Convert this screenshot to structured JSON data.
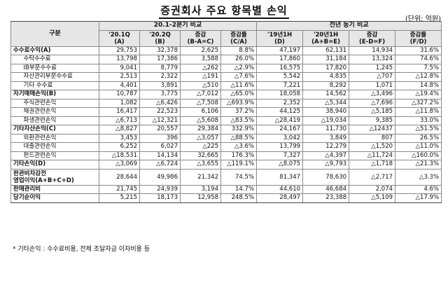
{
  "title": "증권회사 주요 항목별 손익",
  "unit": "(단위: 억원)",
  "header": {
    "category": "구분",
    "group1": "20.1-2분기 비교",
    "group2": "전년 동기 비교",
    "cols": [
      {
        "l1": "'20.1Q",
        "l2": "(A)"
      },
      {
        "l1": "'20.2Q",
        "l2": "(B)"
      },
      {
        "l1": "증감",
        "l2": "(B-A=C)"
      },
      {
        "l1": "증감률",
        "l2": "(C/A)"
      },
      {
        "l1": "'19년1H",
        "l2": "(D)"
      },
      {
        "l1": "'20년1H",
        "l2": "(A+B=E)"
      },
      {
        "l1": "증감",
        "l2": "(E-D=F)"
      },
      {
        "l1": "증감률",
        "l2": "(F/D)"
      }
    ]
  },
  "rows": [
    {
      "label": "수수료수익(A)",
      "level": 0,
      "values": [
        "29,753",
        "32,378",
        "2,625",
        "8.8%",
        "47,197",
        "62,131",
        "14,934",
        "31.6%"
      ]
    },
    {
      "label": "수탁수수료",
      "level": 1,
      "values": [
        "13,798",
        "17,386",
        "3,588",
        "26.0%",
        "17,860",
        "31,184",
        "13,324",
        "74.6%"
      ]
    },
    {
      "label": "IB부문수수료",
      "level": 1,
      "values": [
        "9,041",
        "8,779",
        "△262",
        "△2.9%",
        "16,575",
        "17,820",
        "1,245",
        "7.5%"
      ]
    },
    {
      "label": "자산관리부문수수료",
      "level": 1,
      "values": [
        "2,513",
        "2,322",
        "△191",
        "△7.6%",
        "5,542",
        "4,835",
        "△707",
        "△12.8%"
      ]
    },
    {
      "label": "기타 수수료",
      "level": 1,
      "values": [
        "4,401",
        "3,891",
        "△510",
        "△11.6%",
        "7,221",
        "8,292",
        "1,071",
        "14.8%"
      ]
    },
    {
      "label": "자기매매손익(B)",
      "level": 0,
      "values": [
        "10,787",
        "3,775",
        "△7,012",
        "△65.0%",
        "18,058",
        "14,562",
        "△3,496",
        "△19.4%"
      ]
    },
    {
      "label": "주식관련손익",
      "level": 1,
      "values": [
        "1,082",
        "△6,426",
        "△7,508",
        "△693.9%",
        "2,352",
        "△5,344",
        "△7,696",
        "△327.2%"
      ]
    },
    {
      "label": "채권관련손익",
      "level": 1,
      "values": [
        "16,417",
        "22,523",
        "6,106",
        "37.2%",
        "44,125",
        "38,940",
        "△5,185",
        "△11.8%"
      ]
    },
    {
      "label": "파생관련손익",
      "level": 1,
      "values": [
        "△6,713",
        "△12,321",
        "△5,608",
        "△83.5%",
        "△28,419",
        "△19,034",
        "9,385",
        "33.0%"
      ]
    },
    {
      "label": "기타자산손익(C)",
      "level": 0,
      "values": [
        "△8,827",
        "20,557",
        "29,384",
        "332.9%",
        "24,167",
        "11,730",
        "△12437",
        "△51.5%"
      ]
    },
    {
      "label": "외환관련손익",
      "level": 1,
      "values": [
        "3,453",
        "396",
        "△3,057",
        "△88.5%",
        "3,042",
        "3,849",
        "807",
        "26.5%"
      ]
    },
    {
      "label": "대출관련손익",
      "level": 1,
      "values": [
        "6,252",
        "6,027",
        "△225",
        "△3.6%",
        "13,799",
        "12,279",
        "△1,520",
        "△11.0%"
      ]
    },
    {
      "label": "펀드관련손익",
      "level": 1,
      "values": [
        "△18,531",
        "14,134",
        "32,665",
        "176.3%",
        "7,327",
        "△4,397",
        "△11,724",
        "△160.0%"
      ]
    },
    {
      "label": "기타손익(D)",
      "level": 0,
      "values": [
        "△3,069",
        "△6,724",
        "△3,655",
        "△119.1%",
        "△8,075",
        "△9,793",
        "△1,718",
        "△21.3%"
      ]
    },
    {
      "label": "판관비차감전\n영업이익(A+B+C+D)",
      "level": 0,
      "tall": true,
      "values": [
        "28,644",
        "49,986",
        "21,342",
        "74.5%",
        "81,347",
        "78,630",
        "△2,717",
        "△3.3%"
      ]
    },
    {
      "label": "판매관리비",
      "level": 0,
      "values": [
        "21,745",
        "24,939",
        "3,194",
        "14.7%",
        "44,610",
        "46,684",
        "2,074",
        "4.6%"
      ]
    },
    {
      "label": "당기순이익",
      "level": 0,
      "values": [
        "5,215",
        "18,173",
        "12,958",
        "248.5%",
        "28,497",
        "23,388",
        "△5,109",
        "△17.9%"
      ]
    }
  ],
  "footnote": "* 기타손익 : 수수료비용, 전체 조달자금 이자비용 등"
}
